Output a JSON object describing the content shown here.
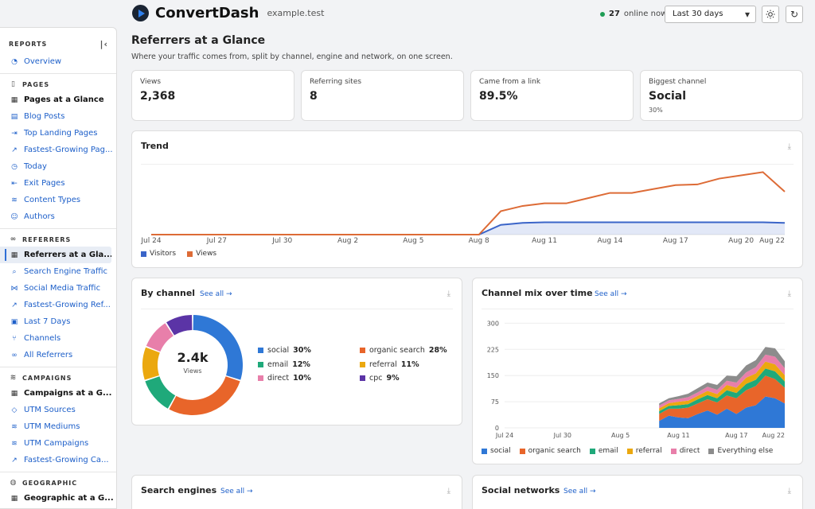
{
  "app": {
    "name": "ConvertDash",
    "domain": "example.test",
    "online_count": "27",
    "online_label": "online now",
    "range": "Last 30 days"
  },
  "sidebar": {
    "title": "REPORTS",
    "overview": "Overview",
    "sections": [
      {
        "title": "PAGES",
        "icon": "file-icon",
        "items": [
          {
            "label": "Pages at a Glance",
            "icon": "grid-icon",
            "strong": true
          },
          {
            "label": "Blog Posts",
            "icon": "document-icon"
          },
          {
            "label": "Top Landing Pages",
            "icon": "enter-icon"
          },
          {
            "label": "Fastest-Growing Pag...",
            "icon": "trend-icon"
          },
          {
            "label": "Today",
            "icon": "clock-icon"
          },
          {
            "label": "Exit Pages",
            "icon": "exit-icon"
          },
          {
            "label": "Content Types",
            "icon": "layers-icon"
          },
          {
            "label": "Authors",
            "icon": "user-icon"
          }
        ]
      },
      {
        "title": "REFERRERS",
        "icon": "link-icon",
        "items": [
          {
            "label": "Referrers at a Gla...",
            "icon": "grid-icon",
            "active": true
          },
          {
            "label": "Search Engine Traffic",
            "icon": "search-icon"
          },
          {
            "label": "Social Media Traffic",
            "icon": "share-icon"
          },
          {
            "label": "Fastest-Growing Ref...",
            "icon": "trend-icon"
          },
          {
            "label": "Last 7 Days",
            "icon": "calendar-icon"
          },
          {
            "label": "Channels",
            "icon": "branch-icon"
          },
          {
            "label": "All Referrers",
            "icon": "link-icon"
          }
        ]
      },
      {
        "title": "CAMPAIGNS",
        "icon": "layers-icon",
        "items": [
          {
            "label": "Campaigns at a G...",
            "icon": "grid-icon",
            "strong": true
          },
          {
            "label": "UTM Sources",
            "icon": "tag-icon"
          },
          {
            "label": "UTM Mediums",
            "icon": "layers-icon"
          },
          {
            "label": "UTM Campaigns",
            "icon": "layers-icon"
          },
          {
            "label": "Fastest-Growing Ca...",
            "icon": "trend-icon"
          }
        ]
      },
      {
        "title": "GEOGRAPHIC",
        "icon": "globe-icon",
        "items": [
          {
            "label": "Geographic at a G...",
            "icon": "grid-icon",
            "strong": true
          }
        ]
      }
    ]
  },
  "page": {
    "title": "Referrers at a Glance",
    "subtitle": "Where your traffic comes from, split by channel, engine and network, on one screen."
  },
  "stats": [
    {
      "label": "Views",
      "value": "2,368",
      "sub": ""
    },
    {
      "label": "Referring sites",
      "value": "8",
      "sub": ""
    },
    {
      "label": "Came from a link",
      "value": "89.5%",
      "sub": ""
    },
    {
      "label": "Biggest channel",
      "value": "Social",
      "sub": "30%"
    }
  ],
  "cards": {
    "trend": {
      "title": "Trend"
    },
    "by_channel": {
      "title": "By channel",
      "see_all": "See all →",
      "center_value": "2.4k",
      "center_label": "Views"
    },
    "mix": {
      "title": "Channel mix over time",
      "see_all": "See all →"
    },
    "search": {
      "title": "Search engines",
      "see_all": "See all →"
    },
    "social": {
      "title": "Social networks",
      "see_all": "See all →"
    }
  },
  "colors": {
    "social": "#2f78d6",
    "organic_search": "#e8652a",
    "email": "#1fa97a",
    "referral": "#eba80f",
    "direct": "#e87faa",
    "cpc": "#5b34a6",
    "everything_else": "#8c8c8c",
    "visitors": "#3a64c8",
    "views": "#dd6b36"
  },
  "chart_data": [
    {
      "type": "line",
      "title": "Trend",
      "x": [
        "Jul 24",
        "Jul 25",
        "Jul 26",
        "Jul 27",
        "Jul 28",
        "Jul 29",
        "Jul 30",
        "Jul 31",
        "Aug 1",
        "Aug 2",
        "Aug 3",
        "Aug 4",
        "Aug 5",
        "Aug 6",
        "Aug 7",
        "Aug 8",
        "Aug 9",
        "Aug 10",
        "Aug 11",
        "Aug 12",
        "Aug 13",
        "Aug 14",
        "Aug 15",
        "Aug 16",
        "Aug 17",
        "Aug 18",
        "Aug 19",
        "Aug 20",
        "Aug 21",
        "Aug 22"
      ],
      "x_ticks": [
        "Jul 24",
        "Jul 27",
        "Jul 30",
        "Aug 2",
        "Aug 5",
        "Aug 8",
        "Aug 11",
        "Aug 14",
        "Aug 17",
        "Aug 20",
        "Aug 22"
      ],
      "series": [
        {
          "name": "Visitors",
          "values": [
            0,
            0,
            0,
            0,
            0,
            0,
            0,
            0,
            0,
            0,
            0,
            0,
            0,
            0,
            0,
            0,
            15,
            18,
            19,
            19,
            19,
            19,
            19,
            19,
            19,
            19,
            19,
            19,
            19,
            18
          ]
        },
        {
          "name": "Views",
          "values": [
            0,
            0,
            0,
            0,
            0,
            0,
            0,
            0,
            0,
            0,
            0,
            0,
            0,
            0,
            0,
            0,
            36,
            44,
            48,
            48,
            56,
            64,
            64,
            70,
            76,
            77,
            86,
            91,
            96,
            66
          ]
        }
      ],
      "ylim": [
        0,
        105
      ],
      "grid": false,
      "legend": "bottom-left"
    },
    {
      "type": "pie",
      "title": "By channel",
      "categories": [
        "social",
        "organic search",
        "email",
        "referral",
        "direct",
        "cpc"
      ],
      "values": [
        30,
        28,
        12,
        11,
        10,
        9
      ]
    },
    {
      "type": "area",
      "title": "Channel mix over time",
      "x": [
        "Jul 24",
        "Jul 25",
        "Jul 26",
        "Jul 27",
        "Jul 28",
        "Jul 29",
        "Jul 30",
        "Jul 31",
        "Aug 1",
        "Aug 2",
        "Aug 3",
        "Aug 4",
        "Aug 5",
        "Aug 6",
        "Aug 7",
        "Aug 8",
        "Aug 9",
        "Aug 10",
        "Aug 11",
        "Aug 12",
        "Aug 13",
        "Aug 14",
        "Aug 15",
        "Aug 16",
        "Aug 17",
        "Aug 18",
        "Aug 19",
        "Aug 20",
        "Aug 21",
        "Aug 22"
      ],
      "x_ticks": [
        "Jul 24",
        "Jul 30",
        "Aug 5",
        "Aug 11",
        "Aug 17",
        "Aug 22"
      ],
      "y_ticks": [
        0,
        75,
        150,
        225,
        300
      ],
      "ylim": [
        0,
        310
      ],
      "stacked": true,
      "series": [
        {
          "name": "social",
          "values": [
            0,
            0,
            0,
            0,
            0,
            0,
            0,
            0,
            0,
            0,
            0,
            0,
            0,
            0,
            0,
            0,
            20,
            35,
            30,
            28,
            40,
            50,
            38,
            55,
            40,
            58,
            65,
            90,
            85,
            70
          ]
        },
        {
          "name": "organic search",
          "values": [
            0,
            0,
            0,
            0,
            0,
            0,
            0,
            0,
            0,
            0,
            0,
            0,
            0,
            0,
            0,
            0,
            20,
            20,
            25,
            30,
            30,
            32,
            35,
            38,
            45,
            50,
            55,
            60,
            55,
            45
          ]
        },
        {
          "name": "email",
          "values": [
            0,
            0,
            0,
            0,
            0,
            0,
            0,
            0,
            0,
            0,
            0,
            0,
            0,
            0,
            0,
            0,
            8,
            8,
            10,
            10,
            12,
            12,
            12,
            15,
            15,
            18,
            18,
            20,
            22,
            18
          ]
        },
        {
          "name": "referral",
          "values": [
            0,
            0,
            0,
            0,
            0,
            0,
            0,
            0,
            0,
            0,
            0,
            0,
            0,
            0,
            0,
            0,
            8,
            8,
            10,
            10,
            10,
            12,
            12,
            15,
            15,
            18,
            18,
            20,
            20,
            18
          ]
        },
        {
          "name": "direct",
          "values": [
            0,
            0,
            0,
            0,
            0,
            0,
            0,
            0,
            0,
            0,
            0,
            0,
            0,
            0,
            0,
            0,
            8,
            8,
            8,
            10,
            10,
            12,
            12,
            12,
            15,
            15,
            18,
            20,
            22,
            20
          ]
        },
        {
          "name": "Everything else",
          "values": [
            0,
            0,
            0,
            0,
            0,
            0,
            0,
            0,
            0,
            0,
            0,
            0,
            0,
            0,
            0,
            0,
            6,
            6,
            8,
            10,
            12,
            12,
            14,
            15,
            18,
            20,
            20,
            22,
            24,
            20
          ]
        }
      ],
      "grid": true,
      "legend": "bottom"
    }
  ]
}
